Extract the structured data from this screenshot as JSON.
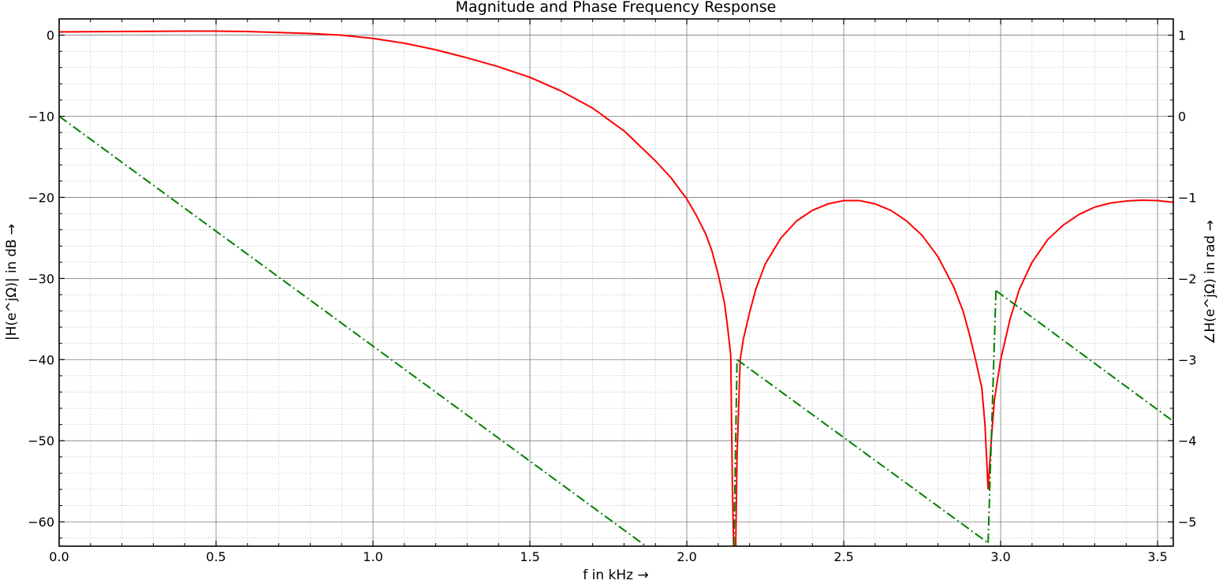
{
  "chart_data": {
    "type": "line",
    "title": "Magnitude and Phase Frequency Response",
    "xlabel": "f in kHz →",
    "ylabel_left": "|H(e^jΩ)| in dB →",
    "ylabel_right": "∠H(e^jΩ) in rad →",
    "xlim": [
      0,
      3.55
    ],
    "ylim_left": [
      -63,
      2
    ],
    "ylim_right": [
      -5.3,
      1.2
    ],
    "grid": true,
    "x_ticks": [
      0,
      0.5,
      1.0,
      1.5,
      2.0,
      2.5,
      3.0,
      3.5
    ],
    "x_tick_labels": [
      "0.0",
      "0.5",
      "1.0",
      "1.5",
      "2.0",
      "2.5",
      "3.0",
      "3.5"
    ],
    "y_left_ticks": [
      0,
      -10,
      -20,
      -30,
      -40,
      -50,
      -60
    ],
    "y_left_tick_labels": [
      "0",
      "−10",
      "−20",
      "−30",
      "−40",
      "−50",
      "−60"
    ],
    "y_right_ticks": [
      1,
      0,
      -1,
      -2,
      -3,
      -4,
      -5
    ],
    "y_right_tick_labels": [
      "1",
      "0",
      "−1",
      "−2",
      "−3",
      "−4",
      "−5"
    ],
    "series": [
      {
        "axis": "left",
        "color": "#ff0000",
        "style": "solid",
        "segments": [
          {
            "x": [
              0,
              0.2,
              0.4,
              0.5,
              0.6,
              0.8,
              0.9,
              1.0,
              1.1,
              1.2,
              1.3,
              1.4,
              1.5,
              1.6,
              1.7,
              1.8,
              1.9,
              1.95,
              2.0,
              2.03,
              2.06,
              2.08,
              2.1,
              2.12,
              2.13,
              2.14
            ],
            "y": [
              0.4,
              0.45,
              0.5,
              0.5,
              0.45,
              0.2,
              0,
              -0.4,
              -1.0,
              -1.8,
              -2.8,
              -3.9,
              -5.2,
              -6.9,
              -9.0,
              -11.8,
              -15.5,
              -17.6,
              -20.2,
              -22.2,
              -24.5,
              -26.6,
              -29.5,
              -33,
              -36,
              -39.5
            ]
          },
          {
            "x": [
              2.14,
              2.145,
              2.15
            ],
            "y": [
              -39.5,
              -55,
              -65
            ]
          },
          {
            "x": [
              2.155,
              2.16,
              2.17,
              2.18,
              2.2,
              2.22,
              2.25,
              2.3,
              2.35,
              2.4,
              2.45,
              2.5,
              2.55,
              2.6,
              2.65,
              2.7,
              2.75,
              2.8,
              2.85,
              2.88,
              2.9,
              2.92,
              2.94,
              2.95,
              2.96
            ],
            "y": [
              -65,
              -52,
              -40,
              -37.5,
              -34.2,
              -31.3,
              -28.2,
              -25,
              -22.9,
              -21.6,
              -20.8,
              -20.4,
              -20.4,
              -20.8,
              -21.6,
              -22.9,
              -24.7,
              -27.3,
              -31,
              -34,
              -36.8,
              -40,
              -43.5,
              -48,
              -56
            ]
          },
          {
            "x": [
              2.96,
              2.97,
              2.98,
              3.0,
              3.03,
              3.06,
              3.1,
              3.15,
              3.2,
              3.25,
              3.3,
              3.35,
              3.4,
              3.45,
              3.5,
              3.55
            ],
            "y": [
              -56,
              -50,
              -45,
              -40,
              -35,
              -31.3,
              -28,
              -25.2,
              -23.4,
              -22.1,
              -21.2,
              -20.7,
              -20.45,
              -20.35,
              -20.4,
              -20.6
            ]
          }
        ]
      },
      {
        "axis": "right",
        "color": "#008000",
        "style": "dashdot",
        "segments": [
          {
            "x": [
              0,
              1.87
            ],
            "y": [
              0,
              -5.3
            ]
          },
          {
            "x": [
              2.15,
              2.16
            ],
            "y": [
              -5.3,
              -3.0
            ]
          },
          {
            "x": [
              2.16,
              2.96
            ],
            "y": [
              -3.0,
              -5.26
            ]
          },
          {
            "x": [
              2.96,
              2.985
            ],
            "y": [
              -5.26,
              -2.15
            ]
          },
          {
            "x": [
              2.985,
              3.55
            ],
            "y": [
              -2.15,
              -3.76
            ]
          }
        ]
      }
    ]
  }
}
